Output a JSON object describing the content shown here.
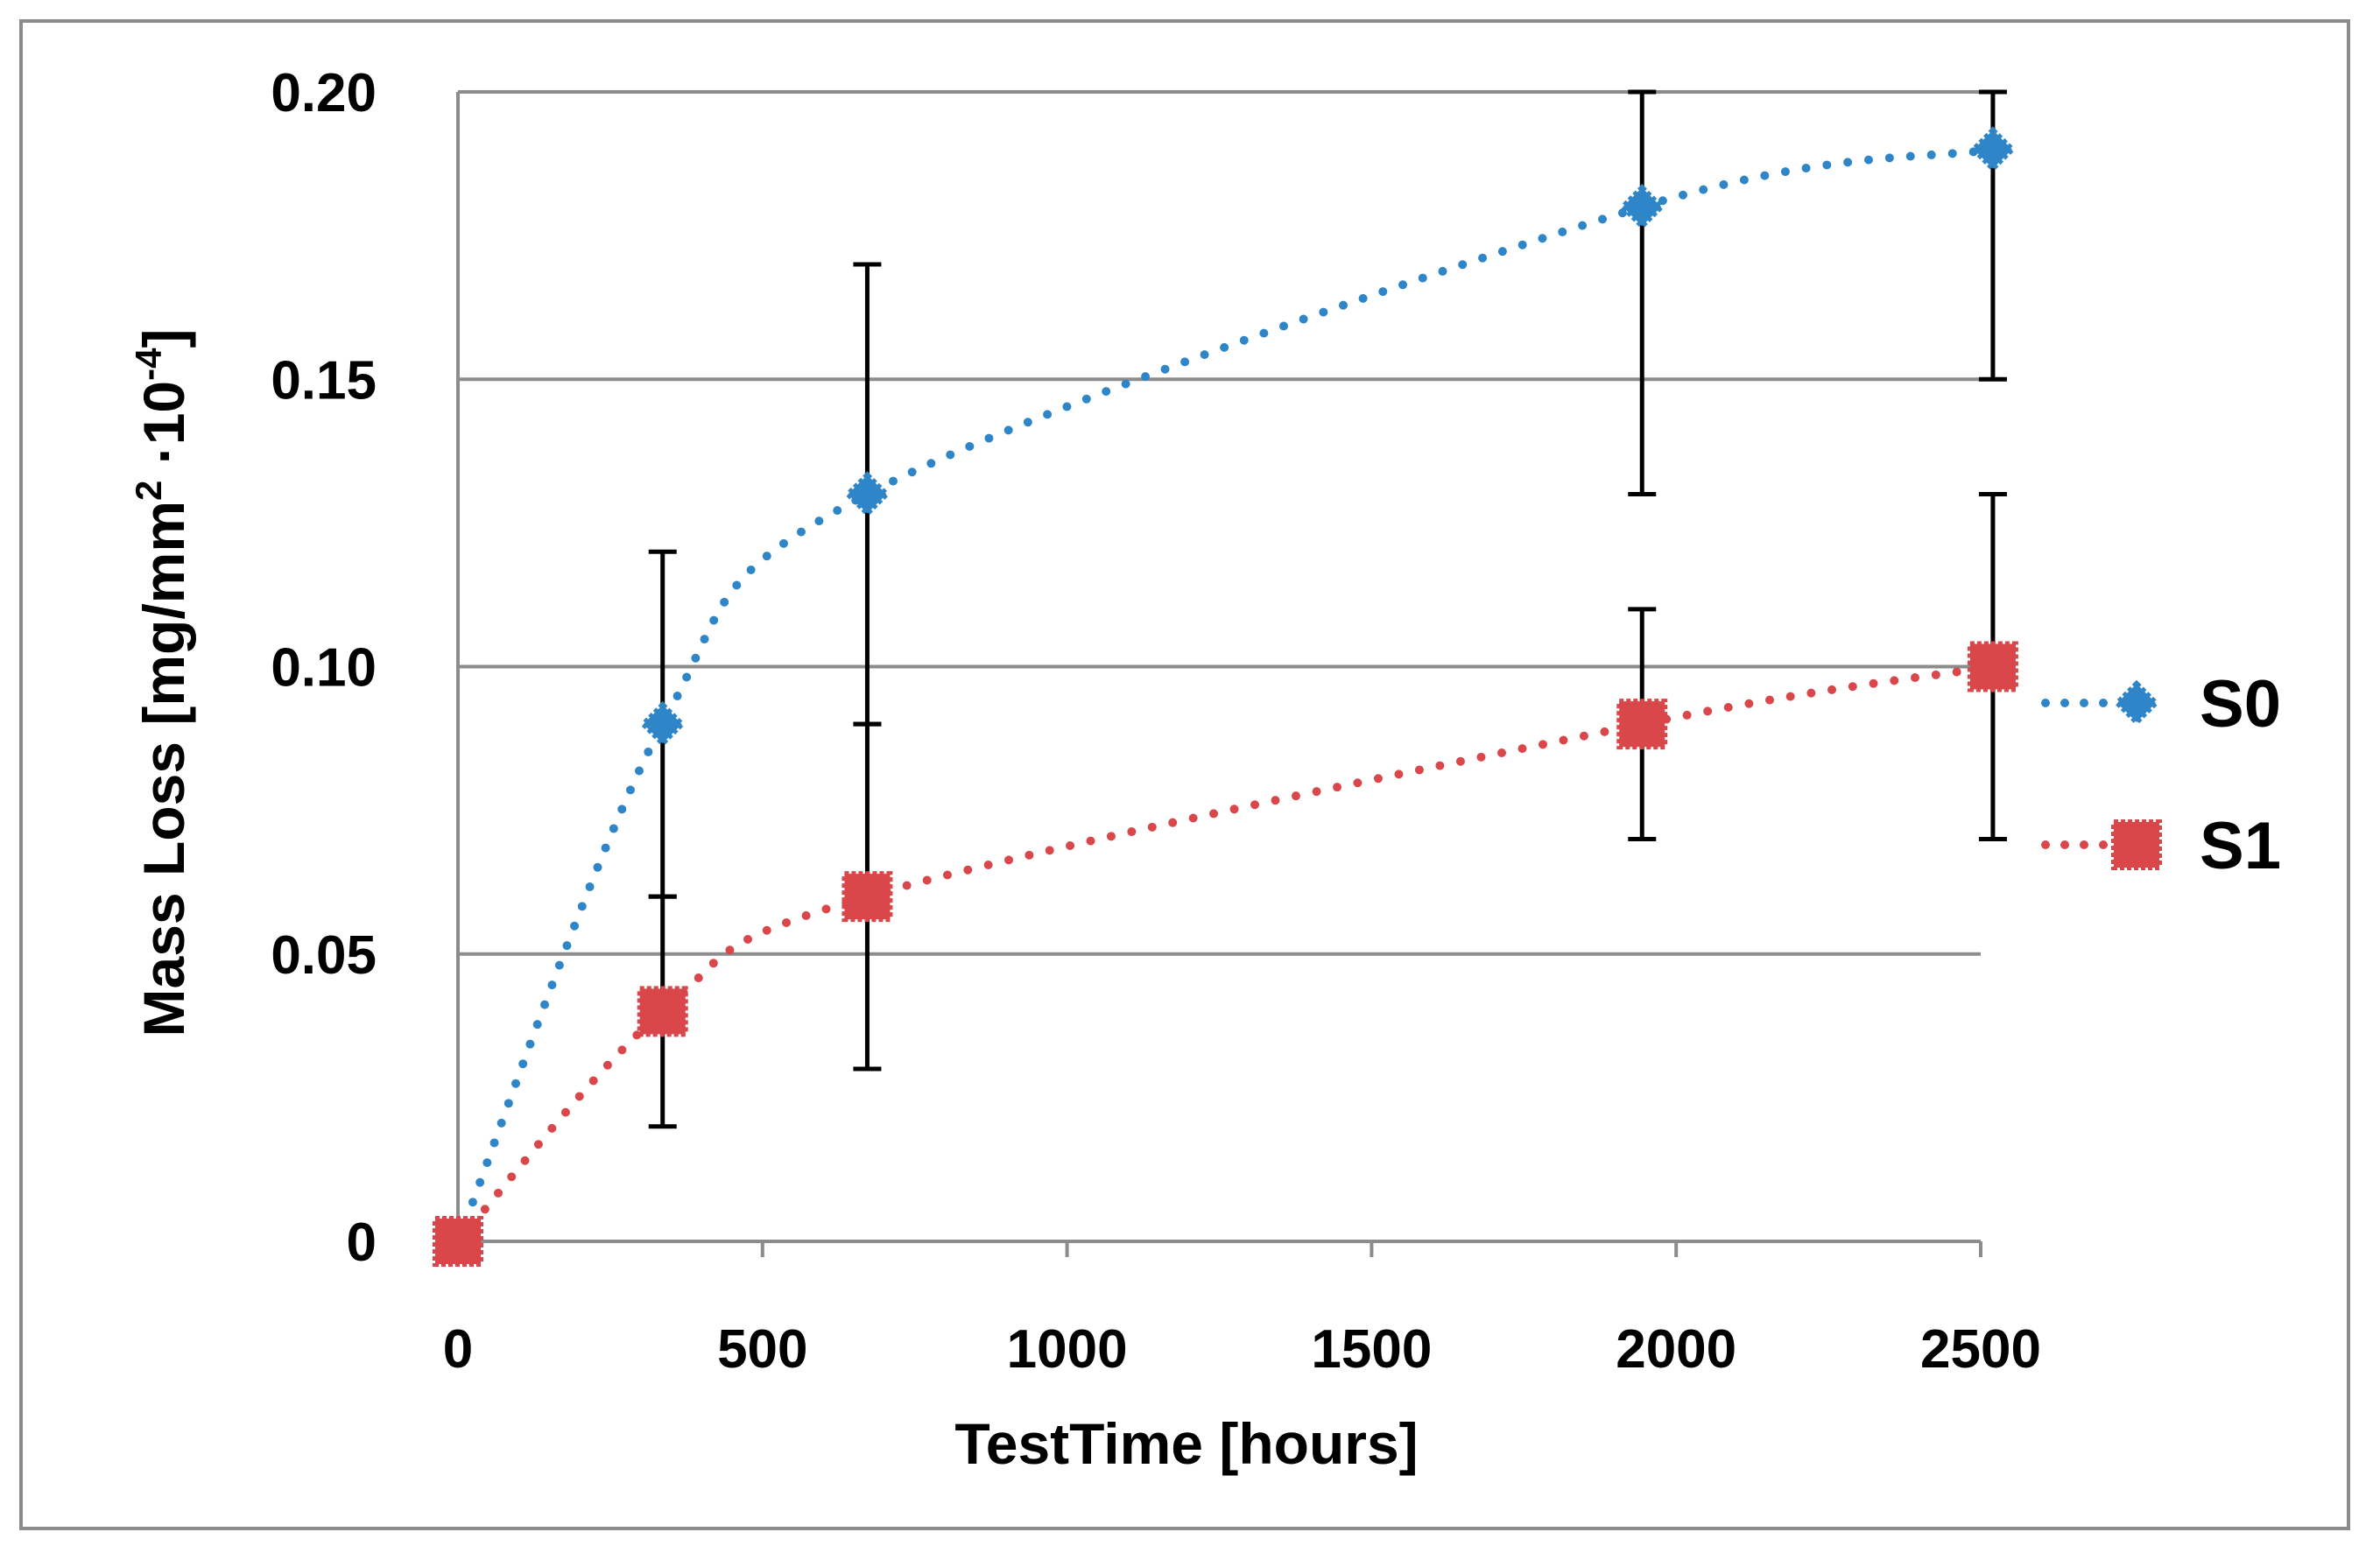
{
  "chart_data": {
    "type": "line",
    "title": "",
    "xlabel": "TestTime [hours]",
    "ylabel_parts": {
      "main": "Mass Loss [mg/mm",
      "sup1": "2",
      "mid": " ·10",
      "sup2": "-4",
      "end": "]"
    },
    "xlim": [
      0,
      2500
    ],
    "ylim": [
      0,
      0.2
    ],
    "x_ticks": [
      {
        "value": 0,
        "label": "0"
      },
      {
        "value": 500,
        "label": "500"
      },
      {
        "value": 1000,
        "label": "1000"
      },
      {
        "value": 1500,
        "label": "1500"
      },
      {
        "value": 2000,
        "label": "2000"
      },
      {
        "value": 2500,
        "label": "2500"
      }
    ],
    "y_ticks": [
      {
        "value": 0,
        "label": "0"
      },
      {
        "value": 0.05,
        "label": "0.05"
      },
      {
        "value": 0.1,
        "label": "0.10"
      },
      {
        "value": 0.15,
        "label": "0.15"
      },
      {
        "value": 0.2,
        "label": "0.20"
      }
    ],
    "grid": "horizontal",
    "legend_position": "right",
    "series": [
      {
        "name": "S0",
        "color": "#2e86c8",
        "marker": "diamond",
        "line_style": "dotted",
        "x": [
          0,
          336,
          672,
          1944,
          2520
        ],
        "y": [
          0,
          0.09,
          0.13,
          0.18,
          0.19
        ],
        "error_low": [
          0,
          0.06,
          0.09,
          0.13,
          0.15
        ],
        "error_high": [
          0,
          0.12,
          0.17,
          0.2,
          0.2
        ]
      },
      {
        "name": "S1",
        "color": "#d9474a",
        "marker": "square",
        "line_style": "dotted",
        "x": [
          0,
          336,
          672,
          1944,
          2520
        ],
        "y": [
          0,
          0.04,
          0.06,
          0.09,
          0.1
        ],
        "error_low": [
          0,
          0.02,
          0.03,
          0.07,
          0.07
        ],
        "error_high": [
          0,
          0.06,
          0.09,
          0.11,
          0.13
        ]
      }
    ]
  }
}
